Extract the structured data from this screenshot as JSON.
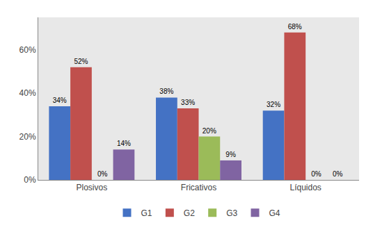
{
  "chart_data": {
    "type": "bar",
    "categories": [
      "Plosivos",
      "Fricativos",
      "Líquidos"
    ],
    "series": [
      {
        "name": "G1",
        "color": "#4472C4",
        "values": [
          34,
          38,
          32
        ],
        "value_labels": [
          "34%",
          "38%",
          "32%"
        ]
      },
      {
        "name": "G2",
        "color": "#C0504D",
        "values": [
          52,
          33,
          68
        ],
        "value_labels": [
          "52%",
          "33%",
          "68%"
        ]
      },
      {
        "name": "G3",
        "color": "#9BBB59",
        "values": [
          0,
          20,
          0
        ],
        "value_labels": [
          "0%",
          "20%",
          "0%"
        ]
      },
      {
        "name": "G4",
        "color": "#8064A2",
        "values": [
          14,
          9,
          0
        ],
        "value_labels": [
          "14%",
          "9%",
          "0%"
        ]
      }
    ],
    "ylim": [
      0,
      75
    ],
    "yticks": [
      {
        "value": 0,
        "label": "0%"
      },
      {
        "value": 20,
        "label": "20%"
      },
      {
        "value": 40,
        "label": "40%"
      },
      {
        "value": 60,
        "label": "60%"
      }
    ],
    "grid": false,
    "data_labels": true,
    "legend": "bottom"
  }
}
